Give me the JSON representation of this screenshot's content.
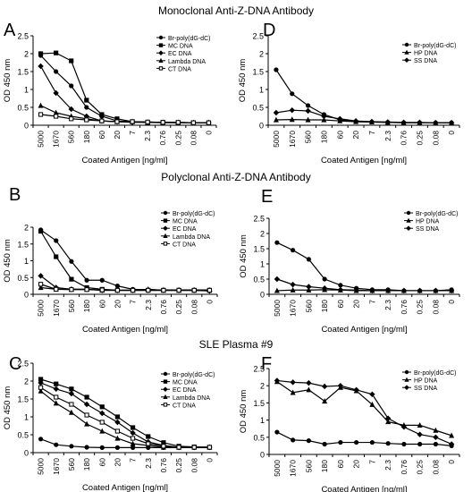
{
  "section_titles": [
    "Monoclonal Anti-Z-DNA Antibody",
    "Polyclonal Anti-Z-DNA Antibody",
    "SLE Plasma #9"
  ],
  "chart_data": [
    {
      "panel": "A",
      "type": "line",
      "xlabel": "Coated Antigen [ng/ml]",
      "ylabel": "OD 450 nm",
      "categories": [
        "5000",
        "1670",
        "560",
        "180",
        "60",
        "20",
        "7",
        "2.3",
        "0.76",
        "0.25",
        "0.08",
        "0"
      ],
      "ylim": [
        0,
        2.5
      ],
      "yticks": [
        "0",
        "0.5",
        "1",
        "1.5",
        "2",
        "2.5"
      ],
      "legend_position": "top-right",
      "series": [
        {
          "name": "Br-poly(dG-dC)",
          "marker": "circle",
          "values": [
            1.95,
            1.5,
            1.1,
            0.5,
            0.25,
            0.12,
            0.1,
            0.09,
            0.08,
            0.08,
            0.07,
            0.07
          ]
        },
        {
          "name": "MC DNA",
          "marker": "square",
          "values": [
            2.0,
            2.02,
            1.8,
            0.7,
            0.3,
            0.18,
            0.1,
            0.08,
            0.08,
            0.07,
            0.07,
            0.07
          ]
        },
        {
          "name": "EC DNA",
          "marker": "diamond",
          "values": [
            1.65,
            0.9,
            0.45,
            0.25,
            0.12,
            0.1,
            0.08,
            0.08,
            0.07,
            0.07,
            0.07,
            0.07
          ]
        },
        {
          "name": "Lambda DNA",
          "marker": "triangle",
          "values": [
            0.55,
            0.35,
            0.25,
            0.18,
            0.12,
            0.1,
            0.1,
            0.08,
            0.08,
            0.08,
            0.07,
            0.07
          ]
        },
        {
          "name": "CT DNA",
          "marker": "square-open",
          "values": [
            0.3,
            0.25,
            0.18,
            0.15,
            0.12,
            0.1,
            0.1,
            0.09,
            0.08,
            0.08,
            0.07,
            0.07
          ]
        }
      ]
    },
    {
      "panel": "D",
      "type": "line",
      "xlabel": "Coated Antigen [ng/ml]",
      "ylabel": "OD 450 nm",
      "categories": [
        "5000",
        "1670",
        "560",
        "180",
        "60",
        "20",
        "7",
        "2.3",
        "0.76",
        "0.25",
        "0.08",
        "0"
      ],
      "ylim": [
        0,
        2.5
      ],
      "yticks": [
        "0",
        "0.5",
        "1",
        "1.5",
        "2",
        "2.5"
      ],
      "legend_position": "top-right",
      "series": [
        {
          "name": "Br-poly(dG-dC)",
          "marker": "circle",
          "values": [
            1.55,
            0.88,
            0.55,
            0.3,
            0.15,
            0.1,
            0.09,
            0.08,
            0.07,
            0.07,
            0.07,
            0.07
          ]
        },
        {
          "name": "HP DNA",
          "marker": "triangle",
          "values": [
            0.15,
            0.16,
            0.15,
            0.15,
            0.12,
            0.1,
            0.09,
            0.08,
            0.07,
            0.07,
            0.07,
            0.07
          ]
        },
        {
          "name": "SS DNA",
          "marker": "diamond",
          "values": [
            0.35,
            0.42,
            0.4,
            0.25,
            0.18,
            0.12,
            0.1,
            0.09,
            0.08,
            0.08,
            0.07,
            0.07
          ]
        }
      ]
    },
    {
      "panel": "B",
      "type": "line",
      "xlabel": "Coated Antigen [ng/ml]",
      "ylabel": "OD 450 nm",
      "categories": [
        "5000",
        "1670",
        "560",
        "180",
        "60",
        "20",
        "7",
        "2.3",
        "0.76",
        "0.25",
        "0.08",
        "0"
      ],
      "ylim": [
        0,
        2.0
      ],
      "yticks": [
        "0",
        "0.5",
        "1",
        "1.5",
        "2"
      ],
      "legend_position": "top-right",
      "series": [
        {
          "name": "Br-poly(dG-dC)",
          "marker": "circle",
          "values": [
            1.92,
            1.6,
            0.98,
            0.42,
            0.42,
            0.25,
            0.15,
            0.13,
            0.13,
            0.13,
            0.13,
            0.13
          ]
        },
        {
          "name": "MC DNA",
          "marker": "square",
          "values": [
            1.88,
            1.12,
            0.45,
            0.2,
            0.15,
            0.12,
            0.12,
            0.12,
            0.12,
            0.12,
            0.12,
            0.12
          ]
        },
        {
          "name": "EC DNA",
          "marker": "diamond",
          "values": [
            0.55,
            0.2,
            0.15,
            0.15,
            0.12,
            0.12,
            0.12,
            0.12,
            0.12,
            0.12,
            0.12,
            0.1
          ]
        },
        {
          "name": "Lambda DNA",
          "marker": "triangle",
          "values": [
            0.2,
            0.15,
            0.15,
            0.15,
            0.12,
            0.12,
            0.12,
            0.15,
            0.12,
            0.12,
            0.12,
            0.12
          ]
        },
        {
          "name": "CT DNA",
          "marker": "square-open",
          "values": [
            0.3,
            0.15,
            0.14,
            0.14,
            0.13,
            0.12,
            0.12,
            0.12,
            0.12,
            0.12,
            0.12,
            0.12
          ]
        }
      ]
    },
    {
      "panel": "E",
      "type": "line",
      "xlabel": "Coated Antigen [ng/ml]",
      "ylabel": "OD 450 nm",
      "categories": [
        "5000",
        "1670",
        "560",
        "180",
        "60",
        "20",
        "7",
        "2.3",
        "0.76",
        "0.25",
        "0.08",
        "0"
      ],
      "ylim": [
        0,
        2.5
      ],
      "yticks": [
        "0",
        "0.5",
        "1",
        "1.5",
        "2",
        "2.5"
      ],
      "legend_position": "top-right",
      "series": [
        {
          "name": "Br-poly(dG-dC)",
          "marker": "circle",
          "values": [
            1.7,
            1.45,
            1.15,
            0.5,
            0.3,
            0.2,
            0.15,
            0.15,
            0.12,
            0.12,
            0.12,
            0.15
          ]
        },
        {
          "name": "HP DNA",
          "marker": "triangle",
          "values": [
            0.12,
            0.14,
            0.14,
            0.15,
            0.14,
            0.12,
            0.12,
            0.12,
            0.12,
            0.12,
            0.12,
            0.12
          ]
        },
        {
          "name": "SS DNA",
          "marker": "diamond",
          "values": [
            0.5,
            0.32,
            0.25,
            0.2,
            0.15,
            0.14,
            0.12,
            0.12,
            0.12,
            0.12,
            0.12,
            0.12
          ]
        }
      ]
    },
    {
      "panel": "C",
      "type": "line",
      "xlabel": "Coated Antigen [ng/ml]",
      "ylabel": "OD 450 nm",
      "categories": [
        "5000",
        "1670",
        "560",
        "180",
        "60",
        "20",
        "7",
        "2.3",
        "0.76",
        "0.25",
        "0.08",
        "0"
      ],
      "ylim": [
        0,
        2.5
      ],
      "yticks": [
        "0",
        "0.5",
        "1",
        "1.5",
        "2",
        "2.5"
      ],
      "legend_position": "top-right",
      "series": [
        {
          "name": "Br-poly(dG-dC)",
          "marker": "circle",
          "values": [
            0.38,
            0.22,
            0.18,
            0.15,
            0.14,
            0.14,
            0.14,
            0.14,
            0.14,
            0.14,
            0.14,
            0.14
          ]
        },
        {
          "name": "MC DNA",
          "marker": "square",
          "values": [
            2.05,
            1.92,
            1.78,
            1.55,
            1.28,
            1.0,
            0.7,
            0.45,
            0.28,
            0.18,
            0.16,
            0.15
          ]
        },
        {
          "name": "EC DNA",
          "marker": "diamond",
          "values": [
            1.95,
            1.78,
            1.65,
            1.35,
            1.1,
            0.85,
            0.55,
            0.3,
            0.2,
            0.15,
            0.15,
            0.15
          ]
        },
        {
          "name": "Lambda DNA",
          "marker": "triangle",
          "values": [
            1.72,
            1.38,
            1.12,
            0.8,
            0.6,
            0.4,
            0.25,
            0.2,
            0.15,
            0.15,
            0.15,
            0.15
          ]
        },
        {
          "name": "CT DNA",
          "marker": "square-open",
          "values": [
            1.82,
            1.55,
            1.35,
            1.05,
            0.85,
            0.6,
            0.4,
            0.25,
            0.18,
            0.15,
            0.15,
            0.15
          ]
        }
      ]
    },
    {
      "panel": "F",
      "type": "line",
      "xlabel": "Coated Antigen [ng/ml]",
      "ylabel": "OD 450 nm",
      "categories": [
        "5000",
        "1670",
        "560",
        "180",
        "60",
        "20",
        "7",
        "2.3",
        "0.76",
        "0.25",
        "0.08",
        "0"
      ],
      "ylim": [
        0,
        2.5
      ],
      "yticks": [
        "0",
        "0.5",
        "1",
        "1.5",
        "2",
        "2.5"
      ],
      "legend_position": "top-right",
      "series": [
        {
          "name": "Br-poly(dG-dC)",
          "marker": "circle",
          "values": [
            0.65,
            0.42,
            0.4,
            0.3,
            0.35,
            0.35,
            0.35,
            0.32,
            0.3,
            0.3,
            0.3,
            0.25
          ]
        },
        {
          "name": "HP DNA",
          "marker": "triangle",
          "values": [
            2.12,
            1.8,
            1.88,
            1.55,
            1.95,
            1.85,
            1.45,
            0.95,
            0.85,
            0.85,
            0.7,
            0.55
          ]
        },
        {
          "name": "SS DNA",
          "marker": "diamond",
          "values": [
            2.15,
            2.1,
            2.08,
            1.98,
            2.0,
            1.88,
            1.75,
            1.05,
            0.8,
            0.58,
            0.5,
            0.3
          ]
        }
      ]
    }
  ]
}
